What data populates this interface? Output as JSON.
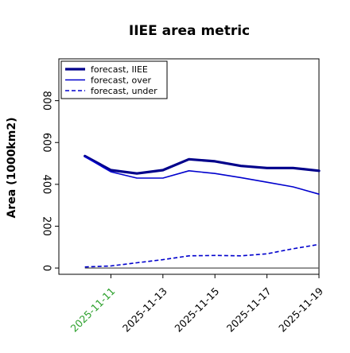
{
  "chart_data": {
    "type": "line",
    "title": "IIEE area metric",
    "xlabel": "",
    "ylabel": "Area (1000km2)",
    "x": [
      "2025-11-10",
      "2025-11-11",
      "2025-11-12",
      "2025-11-13",
      "2025-11-14",
      "2025-11-15",
      "2025-11-16",
      "2025-11-17",
      "2025-11-18",
      "2025-11-19"
    ],
    "x_tick_labels": [
      "2025-11-11",
      "2025-11-13",
      "2025-11-15",
      "2025-11-17",
      "2025-11-19"
    ],
    "highlighted_tick": "2025-11-11",
    "highlight_color": "#2ca02c",
    "xlim": [
      "2025-11-09",
      "2025-11-19"
    ],
    "ylim": [
      -30,
      1000
    ],
    "y_ticks": [
      0,
      200,
      400,
      600,
      800
    ],
    "reference_line": 0,
    "legend": "upper-left",
    "grid": false,
    "series": [
      {
        "name": "forecast, IIEE",
        "color": "#00008b",
        "style": "solid",
        "weight": "thick",
        "values": [
          535,
          468,
          452,
          468,
          520,
          510,
          488,
          478,
          478,
          465
        ]
      },
      {
        "name": "forecast, over",
        "color": "#0000cd",
        "style": "solid",
        "weight": "thin",
        "values": [
          532,
          460,
          430,
          430,
          465,
          452,
          432,
          410,
          388,
          353
        ]
      },
      {
        "name": "forecast, under",
        "color": "#0000cd",
        "style": "dashed",
        "weight": "thin",
        "values": [
          5,
          10,
          25,
          40,
          58,
          60,
          58,
          68,
          92,
          113
        ]
      }
    ]
  }
}
